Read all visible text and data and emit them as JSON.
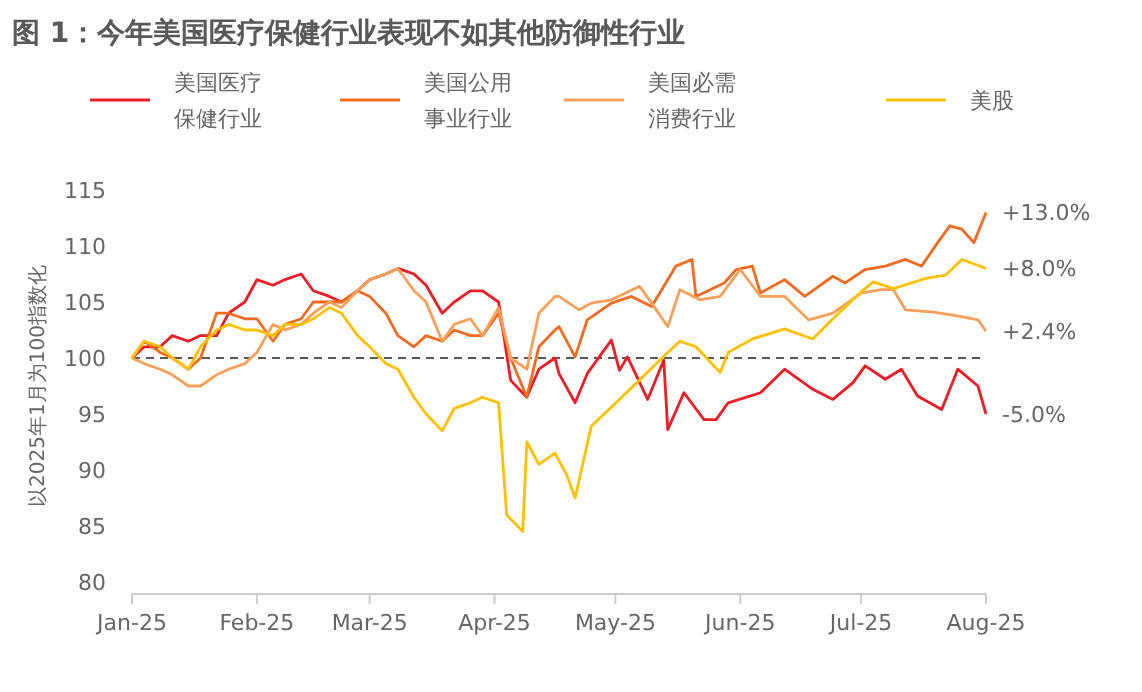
{
  "chart_data": {
    "type": "line",
    "title": "图 1：今年美国医疗保健行业表现不如其他防御性行业",
    "ylabel": "以2025年1月为100指数化",
    "legend": "top",
    "grid": false,
    "line_style": "solid",
    "marker": "none",
    "xlim": [
      "2025-01-01",
      "2025-08-01"
    ],
    "xticks": [
      {
        "value": "2025-01-01",
        "label": "Jan-25"
      },
      {
        "value": "2025-02-01",
        "label": "Feb-25"
      },
      {
        "value": "2025-03-01",
        "label": "Mar-25"
      },
      {
        "value": "2025-04-01",
        "label": "Apr-25"
      },
      {
        "value": "2025-05-01",
        "label": "May-25"
      },
      {
        "value": "2025-06-01",
        "label": "Jun-25"
      },
      {
        "value": "2025-07-01",
        "label": "Jul-25"
      },
      {
        "value": "2025-08-01",
        "label": "Aug-25"
      }
    ],
    "ylim": [
      80,
      115
    ],
    "yticks": [
      80,
      85,
      90,
      95,
      100,
      105,
      110,
      115
    ],
    "ref_lines": [
      {
        "axis": "y",
        "value": 100,
        "color": "#595959",
        "line_style": "dashed"
      }
    ],
    "series": [
      {
        "name": "美国医疗保健行业",
        "color": "#ee1c25",
        "x": [
          "2025-01-01",
          "2025-01-04",
          "2025-01-08",
          "2025-01-11",
          "2025-01-15",
          "2025-01-18",
          "2025-01-22",
          "2025-01-25",
          "2025-01-29",
          "2025-02-01",
          "2025-02-05",
          "2025-02-08",
          "2025-02-12",
          "2025-02-15",
          "2025-02-19",
          "2025-02-22",
          "2025-02-26",
          "2025-03-01",
          "2025-03-05",
          "2025-03-08",
          "2025-03-12",
          "2025-03-15",
          "2025-03-19",
          "2025-03-22",
          "2025-03-26",
          "2025-03-29",
          "2025-04-02",
          "2025-04-05",
          "2025-04-09",
          "2025-04-12",
          "2025-04-16",
          "2025-04-17",
          "2025-04-21",
          "2025-04-24",
          "2025-04-30",
          "2025-05-02",
          "2025-05-04",
          "2025-05-09",
          "2025-05-13",
          "2025-05-14",
          "2025-05-18",
          "2025-05-23",
          "2025-05-26",
          "2025-05-29",
          "2025-06-06",
          "2025-06-12",
          "2025-06-19",
          "2025-06-24",
          "2025-06-29",
          "2025-07-02",
          "2025-07-07",
          "2025-07-11",
          "2025-07-15",
          "2025-07-21",
          "2025-07-25",
          "2025-07-30",
          "2025-08-01"
        ],
        "values": [
          100,
          101,
          101,
          102,
          101.5,
          102,
          102,
          104,
          105,
          107,
          106.5,
          107,
          107.5,
          106,
          105.5,
          105,
          106,
          107,
          107.5,
          108,
          107.5,
          106.5,
          104,
          105,
          106,
          106,
          105,
          98,
          96.5,
          99,
          100,
          98.6,
          96,
          98.6,
          101.6,
          98.9,
          100.1,
          96.3,
          99.8,
          93.6,
          96.9,
          94.5,
          94.5,
          96,
          96.9,
          99,
          97.2,
          96.3,
          97.8,
          99.3,
          98.1,
          99,
          96.6,
          95.4,
          99,
          97.5,
          95
        ]
      },
      {
        "name": "美国公用事业行业",
        "color": "#f26b21",
        "x": [
          "2025-01-01",
          "2025-01-04",
          "2025-01-08",
          "2025-01-11",
          "2025-01-15",
          "2025-01-18",
          "2025-01-22",
          "2025-01-25",
          "2025-01-29",
          "2025-02-01",
          "2025-02-05",
          "2025-02-08",
          "2025-02-12",
          "2025-02-15",
          "2025-02-19",
          "2025-02-22",
          "2025-02-26",
          "2025-03-01",
          "2025-03-05",
          "2025-03-08",
          "2025-03-12",
          "2025-03-15",
          "2025-03-19",
          "2025-03-22",
          "2025-03-26",
          "2025-03-29",
          "2025-04-02",
          "2025-04-05",
          "2025-04-09",
          "2025-04-12",
          "2025-04-16",
          "2025-04-17",
          "2025-04-21",
          "2025-04-24",
          "2025-04-30",
          "2025-05-05",
          "2025-05-10",
          "2025-05-16",
          "2025-05-20",
          "2025-05-21",
          "2025-05-28",
          "2025-05-31",
          "2025-06-04",
          "2025-06-06",
          "2025-06-12",
          "2025-06-17",
          "2025-06-24",
          "2025-06-27",
          "2025-07-02",
          "2025-07-07",
          "2025-07-12",
          "2025-07-16",
          "2025-07-20",
          "2025-07-23",
          "2025-07-26",
          "2025-07-29",
          "2025-08-01"
        ],
        "values": [
          100,
          101.5,
          100.5,
          100,
          99,
          100,
          104,
          104,
          103.5,
          103.5,
          101.5,
          103,
          103.5,
          105,
          105,
          105,
          106,
          105.5,
          104,
          102,
          101,
          102,
          101.5,
          102.5,
          102,
          102,
          104,
          100,
          96.5,
          101,
          102.5,
          102.8,
          100.1,
          103.4,
          104.9,
          105.5,
          104.6,
          108.2,
          108.8,
          105.5,
          106.7,
          107.9,
          108.2,
          105.8,
          107,
          105.5,
          107.3,
          106.7,
          107.9,
          108.2,
          108.8,
          108.2,
          110.3,
          111.8,
          111.5,
          110.3,
          113
        ]
      },
      {
        "name": "美国必需消费行业",
        "color": "#f8a05a",
        "x": [
          "2025-01-01",
          "2025-01-04",
          "2025-01-08",
          "2025-01-11",
          "2025-01-15",
          "2025-01-18",
          "2025-01-22",
          "2025-01-25",
          "2025-01-29",
          "2025-02-01",
          "2025-02-05",
          "2025-02-08",
          "2025-02-12",
          "2025-02-15",
          "2025-02-19",
          "2025-02-22",
          "2025-02-26",
          "2025-03-01",
          "2025-03-05",
          "2025-03-08",
          "2025-03-12",
          "2025-03-15",
          "2025-03-19",
          "2025-03-22",
          "2025-03-26",
          "2025-03-29",
          "2025-04-02",
          "2025-04-05",
          "2025-04-09",
          "2025-04-12",
          "2025-04-16",
          "2025-04-17",
          "2025-04-22",
          "2025-04-25",
          "2025-04-30",
          "2025-05-07",
          "2025-05-10",
          "2025-05-14",
          "2025-05-17",
          "2025-05-22",
          "2025-05-27",
          "2025-06-01",
          "2025-06-06",
          "2025-06-12",
          "2025-06-18",
          "2025-06-24",
          "2025-07-01",
          "2025-07-06",
          "2025-07-09",
          "2025-07-12",
          "2025-07-19",
          "2025-07-26",
          "2025-07-30",
          "2025-08-01"
        ],
        "values": [
          100,
          99.5,
          99,
          98.5,
          97.5,
          97.5,
          98.5,
          99,
          99.5,
          100.5,
          103,
          102.5,
          103,
          104,
          105,
          104.5,
          106,
          107,
          107.5,
          108,
          106,
          105,
          101.5,
          103,
          103.5,
          102,
          104.5,
          100,
          99,
          104,
          105.5,
          105.5,
          104.3,
          104.9,
          105.2,
          106.4,
          104.9,
          102.8,
          106.1,
          105.2,
          105.5,
          107.9,
          105.5,
          105.5,
          103.4,
          104,
          105.8,
          106.1,
          106.1,
          104.3,
          104.1,
          103.7,
          103.4,
          102.4
        ]
      },
      {
        "name": "美股",
        "color": "#ffc000",
        "x": [
          "2025-01-01",
          "2025-01-04",
          "2025-01-08",
          "2025-01-11",
          "2025-01-15",
          "2025-01-18",
          "2025-01-22",
          "2025-01-25",
          "2025-01-29",
          "2025-02-01",
          "2025-02-05",
          "2025-02-08",
          "2025-02-12",
          "2025-02-15",
          "2025-02-19",
          "2025-02-22",
          "2025-02-26",
          "2025-03-01",
          "2025-03-05",
          "2025-03-08",
          "2025-03-12",
          "2025-03-15",
          "2025-03-19",
          "2025-03-22",
          "2025-03-26",
          "2025-03-29",
          "2025-04-02",
          "2025-04-04",
          "2025-04-08",
          "2025-04-09",
          "2025-04-12",
          "2025-04-16",
          "2025-04-19",
          "2025-04-21",
          "2025-04-25",
          "2025-05-02",
          "2025-05-12",
          "2025-05-17",
          "2025-05-21",
          "2025-05-27",
          "2025-05-29",
          "2025-06-04",
          "2025-06-12",
          "2025-06-19",
          "2025-06-24",
          "2025-07-01",
          "2025-07-04",
          "2025-07-09",
          "2025-07-17",
          "2025-07-22",
          "2025-07-26",
          "2025-08-01"
        ],
        "values": [
          100,
          101.5,
          101,
          100,
          99,
          101,
          102.5,
          103,
          102.5,
          102.5,
          102,
          103,
          103,
          103.5,
          104.5,
          104,
          102,
          101,
          99.5,
          99,
          96.5,
          95,
          93.5,
          95.5,
          96,
          96.5,
          96,
          86,
          84.5,
          92.5,
          90.5,
          91.5,
          89.5,
          87.5,
          93.9,
          96.3,
          99.8,
          101.5,
          101,
          98.7,
          100.5,
          101.7,
          102.6,
          101.7,
          103.5,
          105.9,
          106.8,
          106.2,
          107.1,
          107.4,
          108.8,
          108
        ]
      }
    ],
    "annotations": [
      {
        "text": "+13.0%",
        "x": "2025-08-01",
        "y": 113
      },
      {
        "text": "+8.0%",
        "x": "2025-08-01",
        "y": 108
      },
      {
        "text": "+2.4%",
        "x": "2025-08-01",
        "y": 102.4
      },
      {
        "text": "-5.0%",
        "x": "2025-08-01",
        "y": 95
      }
    ]
  }
}
